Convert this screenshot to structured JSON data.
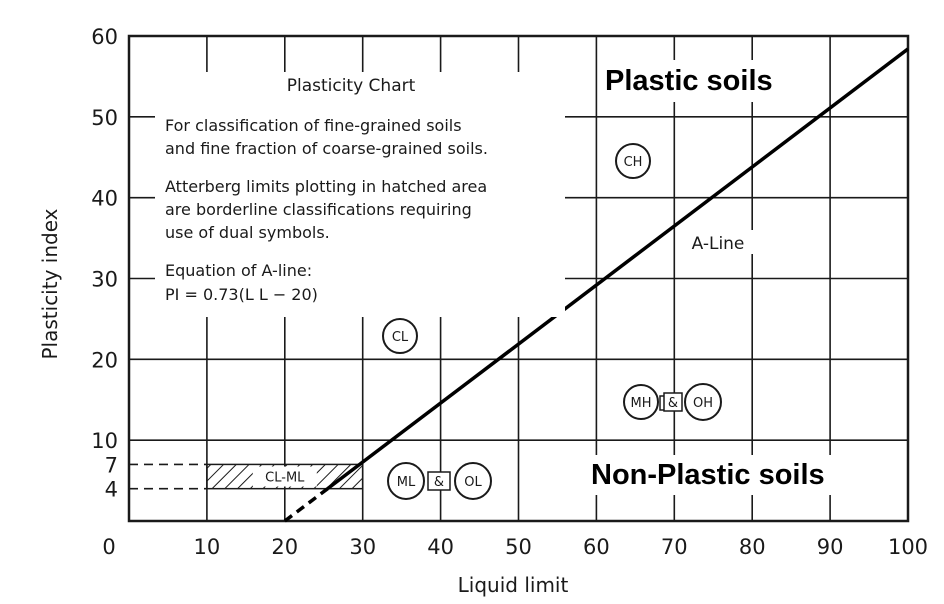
{
  "chart_data": {
    "type": "line",
    "xlabel": "Liquid limit",
    "ylabel": "Plasticity index",
    "xlim": [
      0,
      100
    ],
    "ylim": [
      0,
      60
    ],
    "x_ticks": [
      0,
      10,
      20,
      30,
      40,
      50,
      60,
      70,
      80,
      90,
      100
    ],
    "y_ticks": [
      10,
      20,
      30,
      40,
      50,
      60
    ],
    "y_ticks_extra": [
      4,
      7
    ],
    "grid": true,
    "series": [
      {
        "name": "A-Line",
        "x": [
          25.5,
          100
        ],
        "y": [
          4,
          58.4
        ]
      }
    ],
    "extension_dashed": {
      "x": [
        20,
        25.5
      ],
      "y": [
        0,
        4
      ]
    },
    "hatched_zone": {
      "label": "CL-ML",
      "pi_range": [
        4,
        7
      ],
      "ll_range": [
        10,
        30
      ]
    },
    "dashed_refs": [
      4,
      7
    ],
    "notes": {
      "title": "Plasticity Chart",
      "lines": [
        "For classification of fine-grained soils",
        "and fine fraction of coarse-grained soils.",
        "Atterberg limits plotting in hatched area",
        "are borderline classifications requiring",
        "use of dual symbols.",
        "Equation of A-line:",
        "PI = 0.73(L L − 20)"
      ]
    },
    "symbols": {
      "ch": "CH",
      "cl": "CL",
      "mh": "MH",
      "oh": "OH",
      "ml": "ML",
      "ol": "OL",
      "amp": "&"
    },
    "line_label": "A-Line",
    "region_labels": {
      "upper": "Plastic soils",
      "lower": "Non-Plastic soils"
    }
  }
}
